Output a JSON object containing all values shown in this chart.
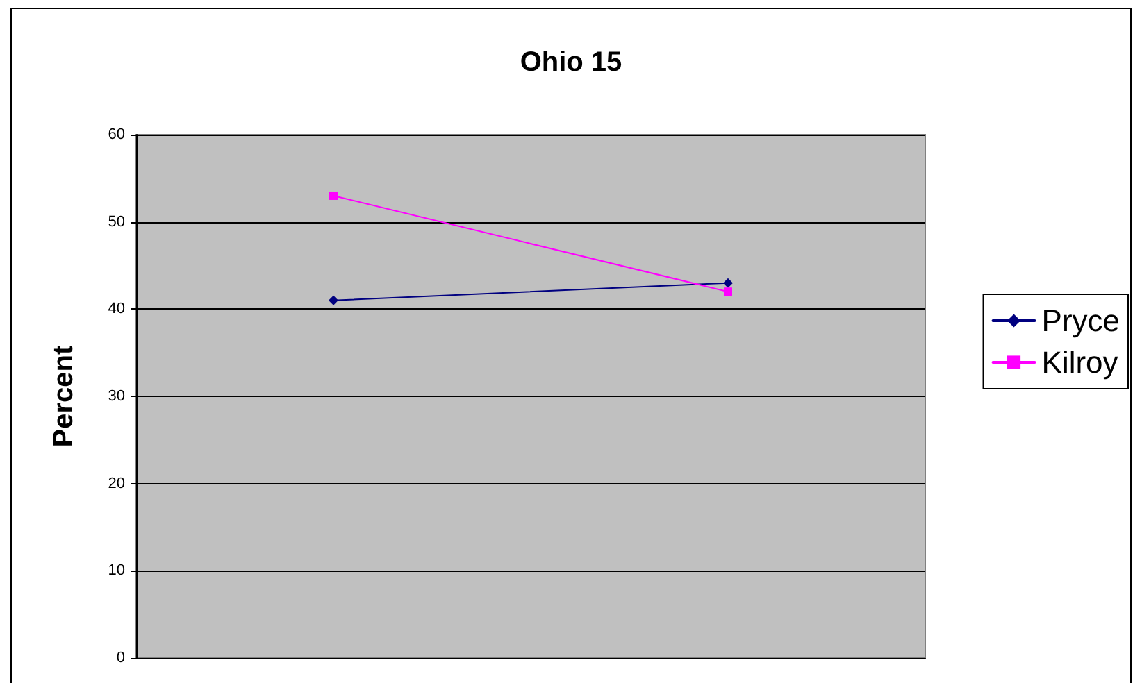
{
  "chart_data": {
    "type": "line",
    "title": "Ohio 15",
    "ylabel": "Percent",
    "categories": [
      null,
      null
    ],
    "series": [
      {
        "name": "Pryce",
        "color": "#000080",
        "values": [
          41,
          43
        ],
        "marker": "diamond"
      },
      {
        "name": "Kilroy",
        "color": "#ff00ff",
        "values": [
          53,
          42
        ],
        "marker": "square"
      }
    ],
    "ylim": [
      0,
      60
    ],
    "yticks": [
      0,
      10,
      20,
      30,
      40,
      50,
      60
    ],
    "grid": "y",
    "legend": "right",
    "line_style": "solid"
  }
}
